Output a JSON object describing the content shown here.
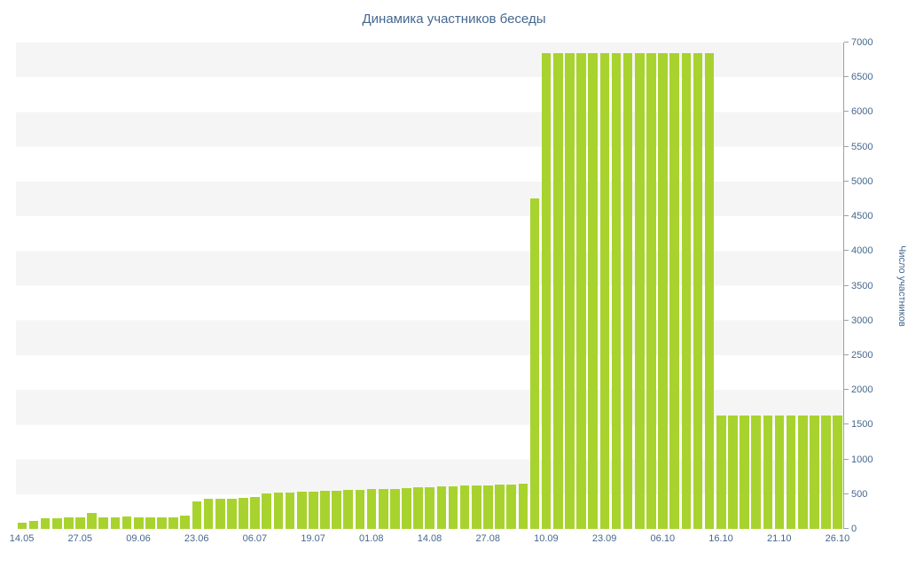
{
  "colors": {
    "bar": "#a8d32e",
    "text": "#45688e",
    "axis": "#96a2ad",
    "stripe": "#f5f5f5",
    "bg": "#ffffff"
  },
  "chart_data": {
    "type": "bar",
    "title": "Динамика участников беседы",
    "xlabel": "",
    "ylabel": "Число участников",
    "ylim": [
      0,
      7000
    ],
    "y_axis_side": "right",
    "grid": "horizontal alternating stripes every 500 units, white and light gray",
    "legend": "none",
    "y_ticks": [
      0,
      500,
      1000,
      1500,
      2000,
      2500,
      3000,
      3500,
      4000,
      4500,
      5000,
      5500,
      6000,
      6500,
      7000
    ],
    "x_tick_labels": [
      "14.05",
      "27.05",
      "09.06",
      "23.06",
      "06.07",
      "19.07",
      "01.08",
      "14.08",
      "27.08",
      "10.09",
      "23.09",
      "06.10",
      "16.10",
      "21.10",
      "26.10"
    ],
    "x_tick_positions": [
      0,
      5,
      10,
      15,
      20,
      25,
      30,
      35,
      40,
      45,
      50,
      55,
      60,
      65,
      70
    ],
    "values": [
      95,
      110,
      150,
      155,
      160,
      170,
      235,
      160,
      170,
      175,
      170,
      165,
      165,
      170,
      195,
      390,
      430,
      430,
      435,
      445,
      460,
      510,
      520,
      525,
      530,
      540,
      545,
      550,
      555,
      560,
      570,
      575,
      580,
      585,
      595,
      600,
      610,
      615,
      620,
      625,
      630,
      635,
      640,
      645,
      4750,
      6850,
      6850,
      6850,
      6850,
      6850,
      6850,
      6850,
      6850,
      6850,
      6850,
      6850,
      6850,
      6850,
      6850,
      6850,
      1630,
      1630,
      1630,
      1630,
      1630,
      1630,
      1630,
      1630,
      1630,
      1630,
      1630
    ]
  }
}
